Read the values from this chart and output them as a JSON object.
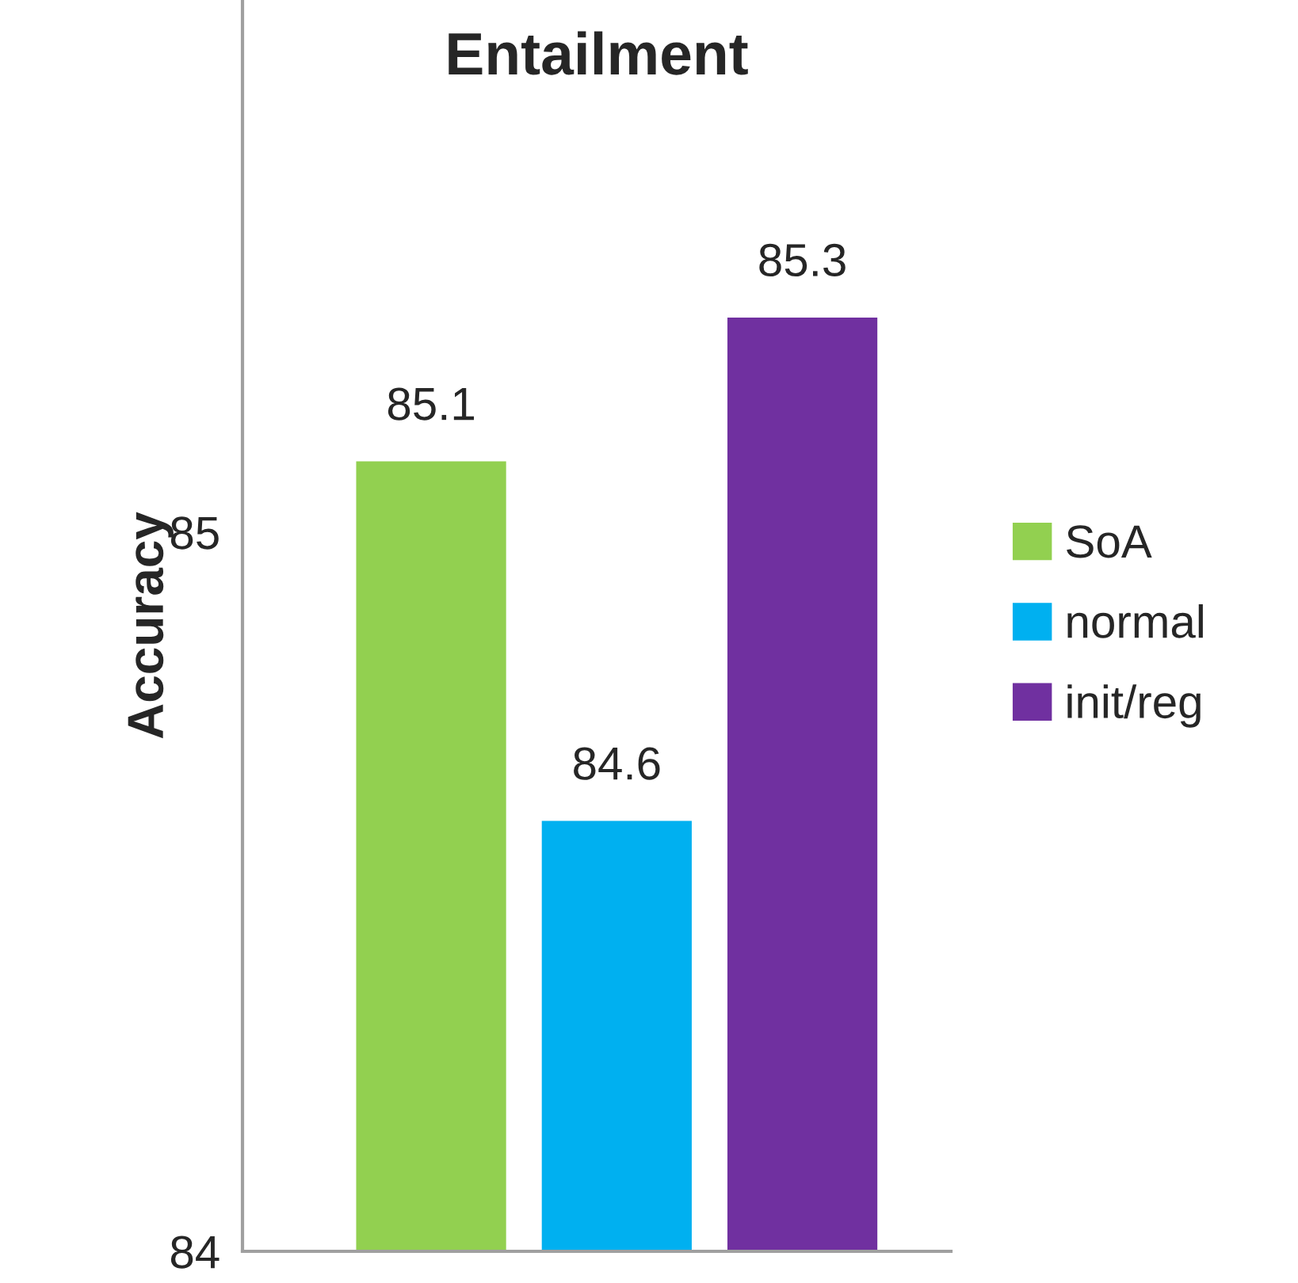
{
  "chart_data": {
    "type": "bar",
    "title": "Entailment",
    "ylabel": "Accuracy",
    "categories": [
      null
    ],
    "series": [
      {
        "name": "SoA",
        "color": "#92d050",
        "values": [
          85.1
        ]
      },
      {
        "name": "normal",
        "color": "#00b0f0",
        "values": [
          84.6
        ]
      },
      {
        "name": "init/reg",
        "color": "#7030a0",
        "values": [
          85.3
        ]
      }
    ],
    "ylim": [
      84,
      85.74
    ],
    "yticks": [
      84,
      85
    ],
    "data_labels": true,
    "legend": "right",
    "grid": false
  }
}
